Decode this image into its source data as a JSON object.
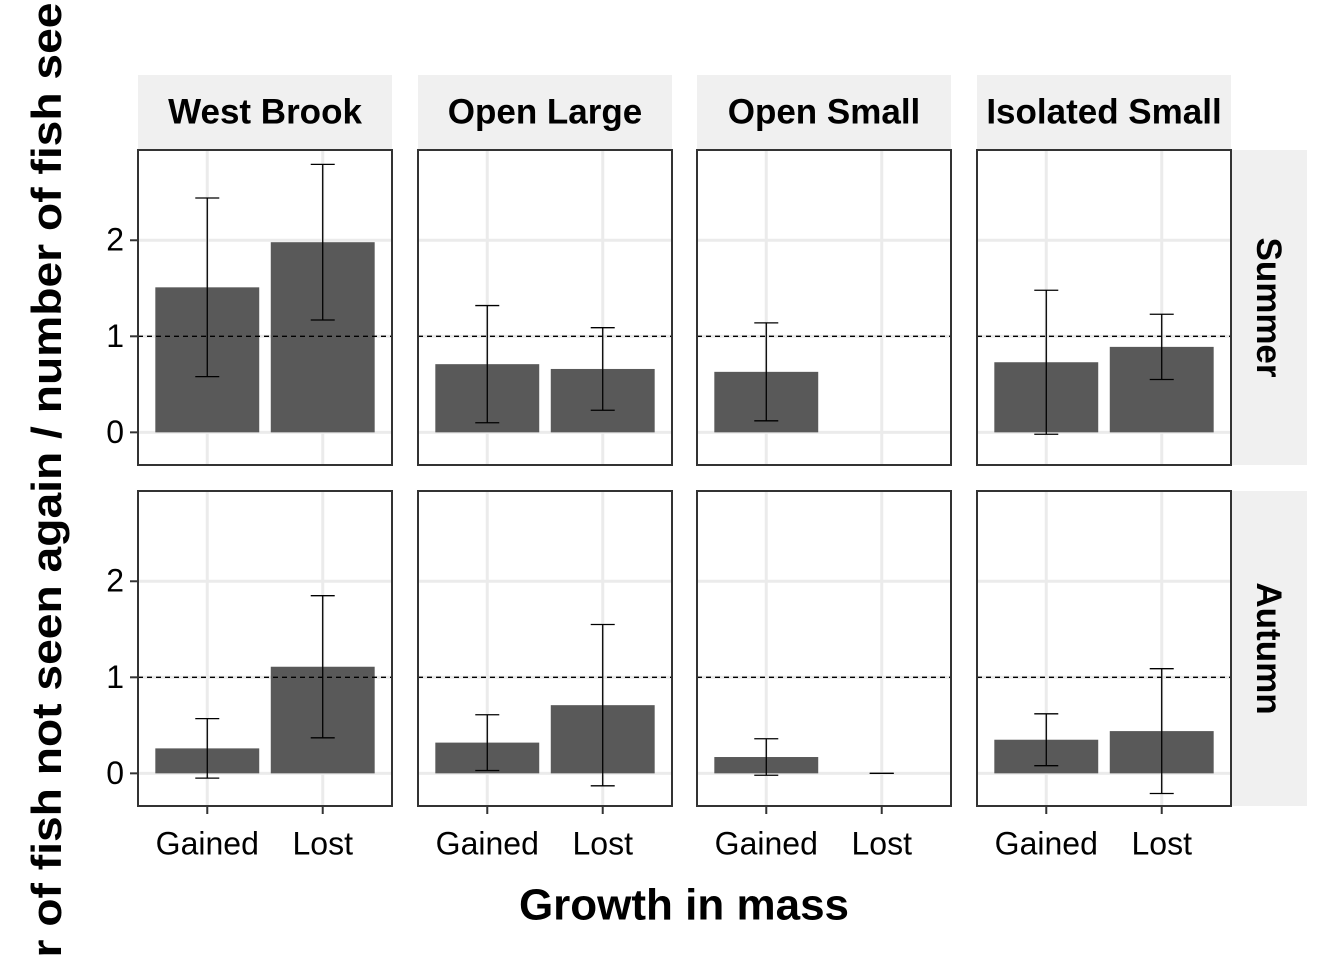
{
  "chart_data": {
    "type": "bar",
    "xlabel": "Growth in mass",
    "ylabel": "r of fish not seen again / number of fish see",
    "columns": [
      "West Brook",
      "Open Large",
      "Open Small",
      "Isolated Small"
    ],
    "rows": [
      "Summer",
      "Autumn"
    ],
    "categories": [
      "Gained",
      "Lost"
    ],
    "ylim": [
      -0.34,
      2.94
    ],
    "yticks": [
      0,
      1,
      2
    ],
    "hline": 1,
    "grid": true,
    "color": "#595959",
    "panels": [
      {
        "values": [
          1.51,
          1.98
        ],
        "errors": [
          0.93,
          0.81
        ]
      },
      {
        "values": [
          0.71,
          0.66
        ],
        "errors": [
          0.61,
          0.43
        ]
      },
      {
        "values": [
          0.63,
          null
        ],
        "errors": [
          0.51,
          null
        ]
      },
      {
        "values": [
          0.73,
          0.89
        ],
        "errors": [
          0.75,
          0.34
        ]
      },
      {
        "values": [
          0.26,
          1.11
        ],
        "errors": [
          0.31,
          0.74
        ]
      },
      {
        "values": [
          0.32,
          0.71
        ],
        "errors": [
          0.29,
          0.84
        ]
      },
      {
        "values": [
          0.17,
          0
        ],
        "errors": [
          0.19,
          0
        ]
      },
      {
        "values": [
          0.35,
          0.44
        ],
        "errors": [
          0.27,
          0.65
        ]
      }
    ]
  }
}
